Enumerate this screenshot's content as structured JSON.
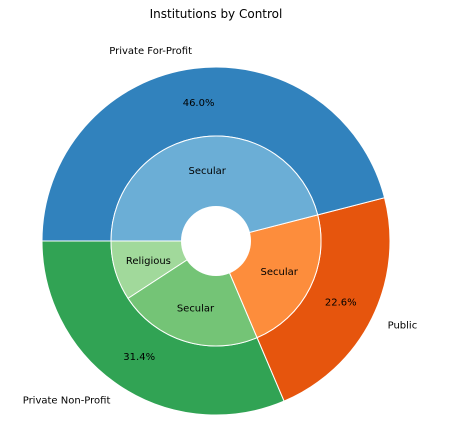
{
  "chart_data": {
    "type": "pie",
    "title": "Institutions by Control",
    "outer": [
      {
        "label": "Private Non-Profit",
        "pct_label": "31.4%",
        "value": 31.4,
        "color": "#31a354"
      },
      {
        "label": "Public",
        "pct_label": "22.6%",
        "value": 22.6,
        "color": "#e6550d"
      },
      {
        "label": "Private For-Profit",
        "pct_label": "46.0%",
        "value": 46.0,
        "color": "#3182bd"
      }
    ],
    "inner": [
      {
        "label": "Religious",
        "value": 9.2,
        "color": "#a1d99b",
        "parent": "Private Non-Profit"
      },
      {
        "label": "Secular",
        "value": 22.2,
        "color": "#74c476",
        "parent": "Private Non-Profit"
      },
      {
        "label": "Secular",
        "value": 22.6,
        "color": "#fd8d3c",
        "parent": "Public"
      },
      {
        "label": "Secular",
        "value": 46.0,
        "color": "#6baed6",
        "parent": "Private For-Profit"
      }
    ]
  }
}
